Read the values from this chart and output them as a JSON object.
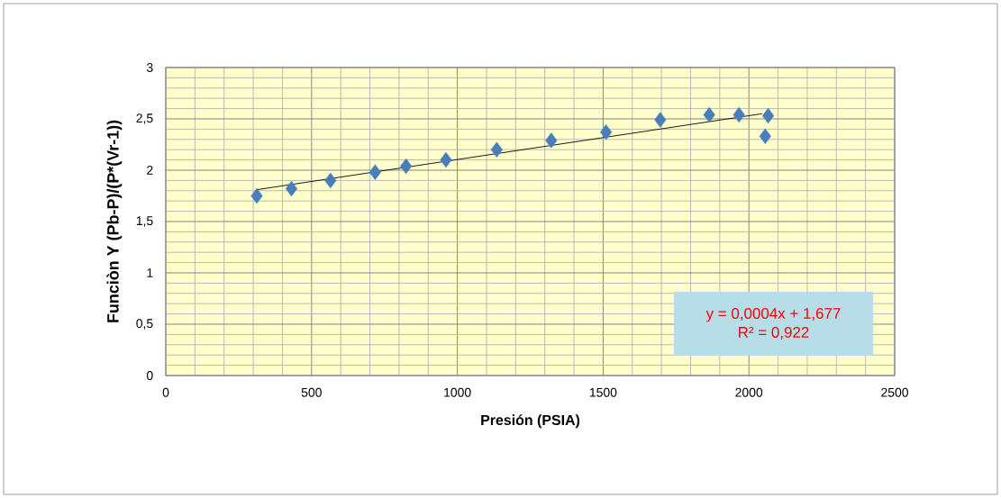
{
  "chart_data": {
    "type": "scatter",
    "xlabel": "Presión (PSIA)",
    "ylabel": "Funciòn Y (Pb-P)/(P*(Vr-1))",
    "annotations": [
      "y = 0,0004x + 1,677",
      "R² = 0,922"
    ],
    "series": [
      {
        "color": "#4a7ebb",
        "marker": "diamond",
        "x": [
          312,
          431,
          565,
          718,
          824,
          961,
          1135,
          1322,
          1510,
          1696,
          1864,
          1966,
          2066,
          2056
        ],
        "values": [
          1.75,
          1.82,
          1.9,
          1.98,
          2.04,
          2.1,
          2.2,
          2.29,
          2.37,
          2.49,
          2.54,
          2.54,
          2.53,
          2.33
        ]
      },
      {
        "type": "line",
        "color": "#000000",
        "marker": "none",
        "line_style": "solid",
        "x": [
          312,
          2045
        ],
        "values": [
          1.81,
          2.55
        ]
      }
    ],
    "xlim": [
      0,
      2500
    ],
    "xticks": [
      0,
      500,
      1000,
      1500,
      2000,
      2500
    ],
    "ylim": [
      0,
      3
    ],
    "yticks": [
      0,
      {
        "value": 0.5,
        "label": "0,5"
      },
      1,
      {
        "value": 1.5,
        "label": "1,5"
      },
      2,
      {
        "value": 2.5,
        "label": "2,5"
      },
      3
    ],
    "grid": true
  }
}
